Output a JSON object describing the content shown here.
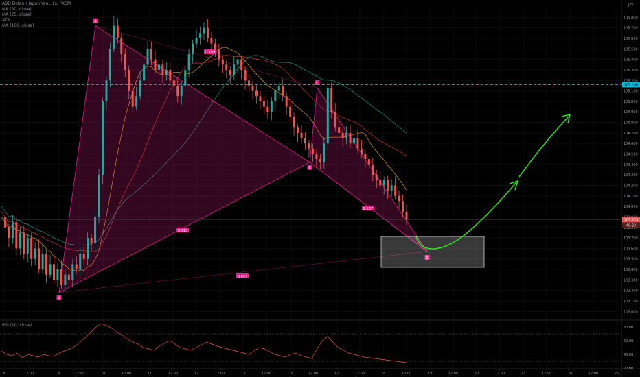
{
  "legend": {
    "symbol": "ABD Doları / Japon Yeni, 1s, FXCM",
    "indicators": [
      "MA (50, close)",
      "MA (25, close)",
      "ATR",
      "MA (100, close)"
    ]
  },
  "rsi_legend": "RSI (10, close)",
  "currency": "JPY",
  "price_labels": {
    "hline": "105.160",
    "last": "103.874",
    "countdown": "48:22"
  },
  "colors": {
    "up": "#26a69a",
    "down": "#ef5350",
    "pattern": "#e91e8c",
    "arrow": "#33dd22",
    "hline": "#00bcd4",
    "ma50": "#e53935",
    "ma25": "#f9a825",
    "ma100": "#26a69a"
  },
  "chart_data": [
    {
      "type": "candlestick",
      "title": "ABD Doları / Japon Yeni, 1s, FXCM",
      "y_axis_ticks": [
        "105.800",
        "105.700",
        "105.600",
        "105.500",
        "105.400",
        "105.300",
        "105.200",
        "105.100",
        "105.000",
        "104.900",
        "104.800",
        "104.700",
        "104.600",
        "104.500",
        "104.400",
        "104.300",
        "104.200",
        "104.100",
        "104.000",
        "103.900",
        "103.800",
        "103.700",
        "103.600",
        "103.500",
        "103.400",
        "103.300",
        "103.200",
        "103.100",
        "103.000"
      ],
      "x_axis_ticks": [
        "6",
        "12:00",
        "9",
        "12:00",
        "10",
        "12:00",
        "11",
        "12:00",
        "12",
        "12:00",
        "13",
        "12:00",
        "16",
        "12:00",
        "17",
        "12:00",
        "18",
        "12:00",
        "19",
        "12:00",
        "20",
        "12:00",
        "23",
        "12:00",
        "24",
        "12:00",
        "25"
      ],
      "ylim": [
        102.95,
        105.9
      ],
      "pattern_points": [
        {
          "label": "X",
          "price": 103.18
        },
        {
          "label": "A",
          "price": 105.72
        },
        {
          "label": "B",
          "price": 104.42
        },
        {
          "label": "C",
          "price": 105.13
        },
        {
          "label": "D",
          "price": 103.57
        }
      ],
      "ratios": [
        "0.589",
        "0.513",
        "2.287",
        "0.847"
      ],
      "horizontal_line": 105.16,
      "last_price": 103.874,
      "candle_path": [
        103.9,
        103.8,
        103.7,
        103.85,
        103.6,
        103.75,
        103.55,
        103.7,
        103.5,
        103.6,
        103.4,
        103.55,
        103.35,
        103.45,
        103.3,
        103.4,
        103.25,
        103.35,
        103.3,
        103.45,
        103.4,
        103.55,
        103.5,
        103.7,
        103.65,
        103.9,
        104.3,
        105.0,
        105.2,
        105.5,
        105.72,
        105.6,
        105.45,
        105.3,
        105.1,
        104.95,
        105.05,
        105.2,
        105.35,
        105.5,
        105.4,
        105.3,
        105.35,
        105.25,
        105.3,
        105.2,
        105.15,
        105.05,
        105.15,
        105.3,
        105.45,
        105.55,
        105.6,
        105.65,
        105.7,
        105.6,
        105.55,
        105.5,
        105.4,
        105.35,
        105.3,
        105.25,
        105.35,
        105.4,
        105.3,
        105.2,
        105.15,
        105.1,
        105.05,
        105.0,
        104.95,
        104.9,
        105.0,
        105.1,
        105.15,
        105.05,
        104.95,
        104.85,
        104.75,
        104.7,
        104.65,
        104.6,
        104.55,
        104.5,
        104.45,
        104.42,
        104.6,
        105.13,
        104.9,
        104.75,
        104.7,
        104.65,
        104.7,
        104.6,
        104.65,
        104.55,
        104.5,
        104.45,
        104.4,
        104.3,
        104.25,
        104.2,
        104.25,
        104.15,
        104.2,
        104.1,
        104.05,
        103.95,
        103.87
      ],
      "rsi": {
        "ylim": [
          20,
          90
        ],
        "levels": [
          70,
          30
        ],
        "ticks": [
          "80.00",
          "60.00",
          "40.00",
          "20.00"
        ],
        "values": [
          45,
          40,
          38,
          42,
          35,
          40,
          38,
          36,
          40,
          38,
          37,
          42,
          45,
          48,
          52,
          58,
          65,
          72,
          80,
          85,
          82,
          78,
          72,
          68,
          62,
          58,
          55,
          50,
          48,
          46,
          52,
          56,
          60,
          55,
          50,
          48,
          46,
          50,
          54,
          58,
          55,
          52,
          50,
          48,
          46,
          44,
          42,
          40,
          45,
          50,
          48,
          44,
          40,
          38,
          36,
          40,
          42,
          38,
          36,
          34,
          48,
          60,
          66,
          58,
          50,
          46,
          42,
          40,
          38,
          36,
          35,
          34,
          33,
          32,
          31,
          30,
          29,
          28
        ]
      }
    }
  ]
}
